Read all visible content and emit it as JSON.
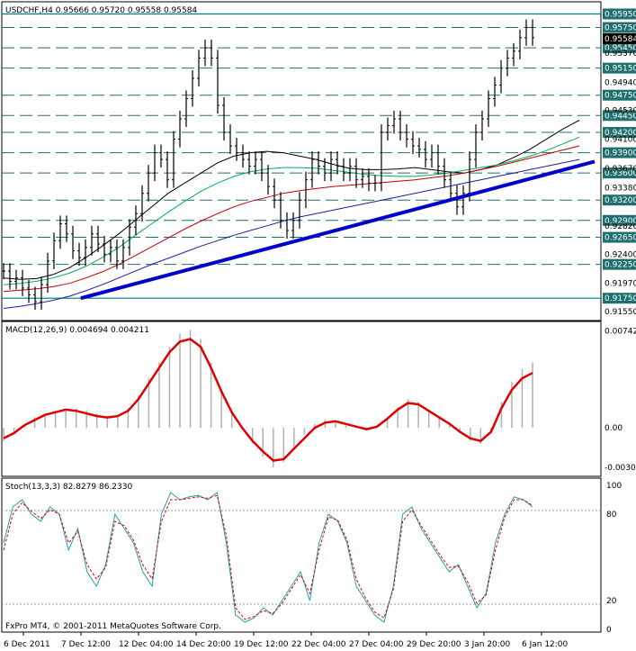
{
  "chart_data": [
    {
      "type": "line",
      "title": "USDCHF,H4",
      "ohlc_text": "0.95666 0.95720 0.95558 0.95584",
      "y_ticks": [
        "0.95950",
        "0.95750",
        "0.95584",
        "0.95450",
        "0.95370",
        "0.95150",
        "0.94940",
        "0.94750",
        "0.94530",
        "0.94450",
        "0.94200",
        "0.94100",
        "0.93900",
        "0.93670",
        "0.93600",
        "0.93380",
        "0.93200",
        "0.92900",
        "0.92820",
        "0.92650",
        "0.92400",
        "0.92250",
        "0.91970",
        "0.91750",
        "0.91550"
      ],
      "current_price": "0.95584",
      "ylim": [
        0.915,
        0.9605
      ],
      "horizontal_levels": [
        {
          "label": "0.95950",
          "value": 0.9595,
          "style": "solid"
        },
        {
          "label": "0.95750",
          "value": 0.9575,
          "style": "dashed"
        },
        {
          "label": "0.95450",
          "value": 0.9545,
          "style": "dashed"
        },
        {
          "label": "0.95150",
          "value": 0.9515,
          "style": "dashed"
        },
        {
          "label": "0.94750",
          "value": 0.9475,
          "style": "dashed"
        },
        {
          "label": "0.94450",
          "value": 0.9445,
          "style": "dashed"
        },
        {
          "label": "0.94200",
          "value": 0.942,
          "style": "dashed"
        },
        {
          "label": "0.93900",
          "value": 0.939,
          "style": "dashed"
        },
        {
          "label": "0.93600",
          "value": 0.936,
          "style": "dashed"
        },
        {
          "label": "0.93200",
          "value": 0.932,
          "style": "dashed"
        },
        {
          "label": "0.92900",
          "value": 0.929,
          "style": "dashed"
        },
        {
          "label": "0.92650",
          "value": 0.9265,
          "style": "dashed"
        },
        {
          "label": "0.92250",
          "value": 0.9225,
          "style": "dashed"
        },
        {
          "label": "0.91750",
          "value": 0.9175,
          "style": "solid"
        }
      ],
      "price_series": [
        0.9215,
        0.92,
        0.9205,
        0.919,
        0.918,
        0.917,
        0.9195,
        0.923,
        0.926,
        0.9285,
        0.927,
        0.9245,
        0.9235,
        0.925,
        0.927,
        0.9255,
        0.924,
        0.925,
        0.923,
        0.925,
        0.928,
        0.93,
        0.933,
        0.936,
        0.939,
        0.938,
        0.935,
        0.941,
        0.944,
        0.947,
        0.95,
        0.953,
        0.9545,
        0.953,
        0.946,
        0.942,
        0.94,
        0.939,
        0.938,
        0.937,
        0.938,
        0.936,
        0.934,
        0.932,
        0.929,
        0.9275,
        0.929,
        0.932,
        0.935,
        0.938,
        0.937,
        0.936,
        0.938,
        0.937,
        0.936,
        0.937,
        0.935,
        0.9355,
        0.9345,
        0.9345,
        0.942,
        0.943,
        0.944,
        0.942,
        0.941,
        0.94,
        0.9395,
        0.938,
        0.939,
        0.937,
        0.935,
        0.933,
        0.931,
        0.933,
        0.938,
        0.942,
        0.944,
        0.947,
        0.949,
        0.9515,
        0.953,
        0.954,
        0.956,
        0.9575,
        0.956
      ],
      "series": [
        {
          "color": "#000000",
          "values": [
            0.9205,
            0.9203,
            0.9204,
            0.921,
            0.922,
            0.9235,
            0.9252,
            0.927,
            0.929,
            0.931,
            0.933,
            0.9345,
            0.936,
            0.9375,
            0.9385,
            0.939,
            0.9392,
            0.939,
            0.9385,
            0.938,
            0.9373,
            0.9367,
            0.9365,
            0.9365,
            0.9366,
            0.9368,
            0.9365,
            0.9362,
            0.936,
            0.9365,
            0.9372,
            0.9383,
            0.9395,
            0.941,
            0.9425,
            0.9438
          ]
        },
        {
          "color": "#00b050",
          "values": [
            0.9195,
            0.9197,
            0.92,
            0.9205,
            0.9212,
            0.9222,
            0.9235,
            0.925,
            0.9268,
            0.9285,
            0.9302,
            0.9318,
            0.9333,
            0.9345,
            0.9355,
            0.9362,
            0.9366,
            0.9368,
            0.9368,
            0.9367,
            0.9364,
            0.9361,
            0.9358,
            0.9356,
            0.9355,
            0.9355,
            0.9357,
            0.936,
            0.9364,
            0.9368,
            0.9372,
            0.9378,
            0.9385,
            0.9393,
            0.9403,
            0.9413
          ]
        },
        {
          "color": "#c00000",
          "values": [
            0.9185,
            0.9187,
            0.9189,
            0.9192,
            0.9197,
            0.9205,
            0.9214,
            0.9225,
            0.9238,
            0.9251,
            0.9264,
            0.9277,
            0.9289,
            0.93,
            0.931,
            0.9318,
            0.9324,
            0.933,
            0.9334,
            0.9337,
            0.934,
            0.9342,
            0.9344,
            0.9346,
            0.9348,
            0.935,
            0.9353,
            0.9356,
            0.936,
            0.9365,
            0.937,
            0.9376,
            0.9382,
            0.9388,
            0.9394,
            0.94
          ]
        },
        {
          "color": "#1f1fa0",
          "values": [
            0.916,
            0.9163,
            0.9167,
            0.9172,
            0.9178,
            0.9186,
            0.9195,
            0.9205,
            0.9215,
            0.9225,
            0.9234,
            0.9243,
            0.9252,
            0.926,
            0.9268,
            0.9275,
            0.9282,
            0.9289,
            0.9295,
            0.93,
            0.9305,
            0.931,
            0.9315,
            0.932,
            0.9325,
            0.933,
            0.9335,
            0.934,
            0.9345,
            0.935,
            0.9355,
            0.936,
            0.9365,
            0.937,
            0.9375,
            0.938
          ]
        }
      ],
      "trendline": {
        "x": [
          0.13,
          0.95
        ],
        "y": [
          0.9175,
          0.937
        ]
      }
    },
    {
      "type": "line",
      "title": "MACD(12,26,9) 0.004694 0.004211",
      "y_ticks": [
        "0.007426",
        "0.00",
        "-0.003027"
      ],
      "ylim": [
        -0.0035,
        0.0078
      ],
      "histogram": [
        -0.001,
        -0.0005,
        0.0002,
        0.0008,
        0.001,
        0.0012,
        0.0014,
        0.0015,
        0.0013,
        0.0011,
        0.0009,
        0.001,
        0.0015,
        0.0025,
        0.0038,
        0.005,
        0.0062,
        0.0072,
        0.0075,
        0.0068,
        0.005,
        0.003,
        0.0012,
        0.0,
        -0.0012,
        -0.0022,
        -0.003,
        -0.0026,
        -0.0015,
        -0.0005,
        0.0003,
        0.0006,
        0.0005,
        0.0002,
        0.0,
        -0.0002,
        0.0,
        0.0008,
        0.0016,
        0.0022,
        0.002,
        0.0014,
        0.0008,
        0.0004,
        -0.0004,
        -0.001,
        -0.0012,
        -0.0002,
        0.002,
        0.0035,
        0.0045,
        0.005
      ],
      "signal": [
        -0.0008,
        -0.0004,
        0.0002,
        0.0006,
        0.001,
        0.0012,
        0.0014,
        0.0013,
        0.0011,
        0.0009,
        0.0008,
        0.0009,
        0.0013,
        0.0022,
        0.0034,
        0.0046,
        0.0058,
        0.0066,
        0.0068,
        0.0062,
        0.0046,
        0.0028,
        0.0012,
        0.0,
        -0.001,
        -0.0018,
        -0.0025,
        -0.0024,
        -0.0016,
        -0.0008,
        0.0,
        0.0004,
        0.0005,
        0.0003,
        0.0001,
        -0.0001,
        0.0001,
        0.0007,
        0.0014,
        0.0019,
        0.0018,
        0.0013,
        0.0008,
        0.0003,
        -0.0003,
        -0.0008,
        -0.001,
        -0.0003,
        0.0015,
        0.0029,
        0.0038,
        0.0042
      ]
    },
    {
      "type": "line",
      "title": "Stoch(13,3,3) 82.8279 86.2330",
      "y_ticks": [
        "100",
        "80",
        "20",
        "0"
      ],
      "ylim": [
        0,
        100
      ],
      "main": [
        60,
        85,
        90,
        80,
        75,
        85,
        80,
        55,
        70,
        40,
        30,
        45,
        80,
        70,
        60,
        40,
        30,
        80,
        95,
        90,
        92,
        93,
        90,
        95,
        60,
        10,
        5,
        8,
        15,
        10,
        20,
        30,
        40,
        20,
        60,
        80,
        75,
        60,
        30,
        20,
        10,
        5,
        30,
        80,
        85,
        70,
        60,
        50,
        40,
        45,
        30,
        15,
        25,
        60,
        80,
        92,
        90,
        85
      ],
      "signal": [
        55,
        80,
        88,
        82,
        77,
        83,
        80,
        60,
        68,
        45,
        35,
        43,
        75,
        72,
        62,
        45,
        35,
        75,
        90,
        90,
        91,
        92,
        91,
        93,
        65,
        15,
        7,
        9,
        13,
        11,
        18,
        28,
        38,
        25,
        55,
        78,
        76,
        62,
        35,
        22,
        12,
        8,
        28,
        75,
        83,
        72,
        62,
        52,
        43,
        44,
        33,
        18,
        24,
        55,
        78,
        90,
        90,
        86
      ]
    }
  ],
  "time_axis_labels": [
    "6 Dec 2011",
    "7 Dec 12:00",
    "12 Dec 04:00",
    "14 Dec 20:00",
    "19 Dec 12:00",
    "22 Dec 04:00",
    "27 Dec 04:00",
    "29 Dec 20:00",
    "3 Jan 20:00",
    "6 Jan 12:00"
  ],
  "watermark": "FxPro MT4, © 2001-2011 MetaQuotes Software Corp."
}
